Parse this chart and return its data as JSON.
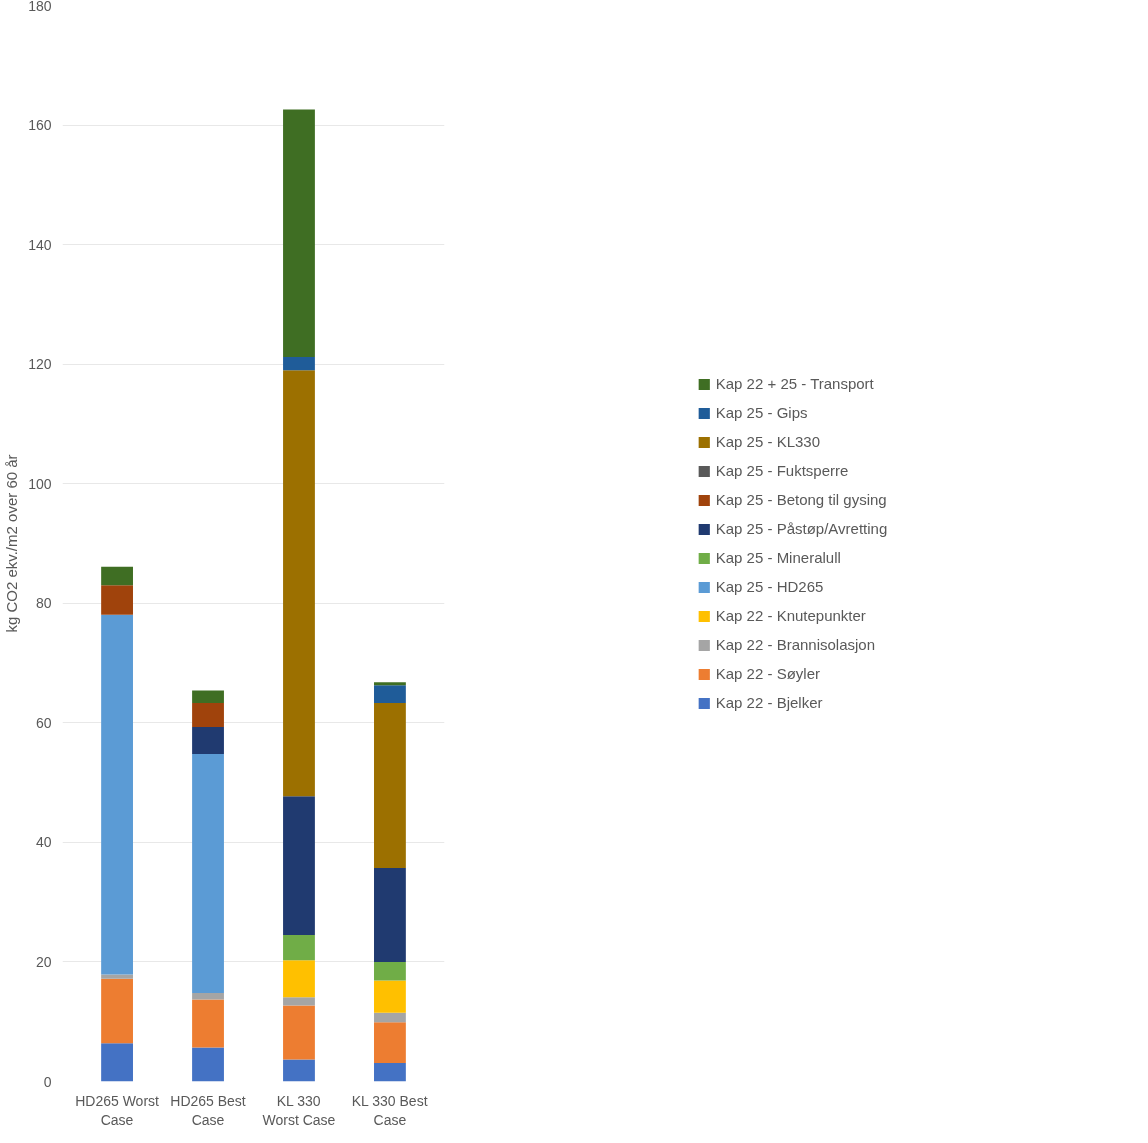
{
  "chart_data": {
    "type": "bar",
    "stacked": true,
    "ylabel": "kg CO2 ekv./m2 over 60 år",
    "categories": [
      "HD265 Worst Case",
      "HD265 Best Case",
      "KL 330 Worst Case",
      "KL 330 Best Case"
    ],
    "ylim": [
      0,
      180
    ],
    "yticks": [
      0,
      20,
      40,
      60,
      80,
      100,
      120,
      140,
      160,
      180
    ],
    "grid": "y",
    "legend": "right",
    "series": [
      {
        "name": "Kap 22 - Bjelker",
        "color": "#4472c4",
        "values": [
          6.4,
          5.7,
          3.7,
          3.1
        ]
      },
      {
        "name": "Kap 22 - Søyler",
        "color": "#ed7d31",
        "values": [
          10.8,
          8.0,
          9.0,
          6.8
        ]
      },
      {
        "name": "Kap 22 - Brannisolasjon",
        "color": "#a5a5a5",
        "values": [
          0.7,
          1.1,
          1.4,
          1.6
        ]
      },
      {
        "name": "Kap 22 - Knutepunkter",
        "color": "#ffc000",
        "values": [
          0,
          0,
          6.2,
          5.4
        ]
      },
      {
        "name": "Kap 25 - HD265",
        "color": "#5b9bd5",
        "values": [
          60.2,
          40.0,
          0,
          0
        ]
      },
      {
        "name": "Kap 25 - Mineralull",
        "color": "#70ad47",
        "values": [
          0,
          0,
          4.2,
          3.1
        ]
      },
      {
        "name": "Kap 25 - Påstøp/Avretting",
        "color": "#203a70",
        "values": [
          0,
          4.5,
          23.2,
          15.7
        ]
      },
      {
        "name": "Kap 25 - Betong til gysing",
        "color": "#a0430c",
        "values": [
          4.9,
          4.0,
          0,
          0
        ]
      },
      {
        "name": "Kap 25 - Fuktsperre",
        "color": "#595959",
        "values": [
          0,
          0,
          0,
          0
        ]
      },
      {
        "name": "Kap 25 - KL330",
        "color": "#9c7000",
        "values": [
          0,
          0,
          71.3,
          27.6
        ]
      },
      {
        "name": "Kap 25 - Gips",
        "color": "#1f5c99",
        "values": [
          0,
          0,
          2.2,
          3.0
        ]
      },
      {
        "name": "Kap 22 + 25 - Transport",
        "color": "#3f6e23",
        "values": [
          3.1,
          2.1,
          41.4,
          0.5
        ]
      }
    ]
  }
}
